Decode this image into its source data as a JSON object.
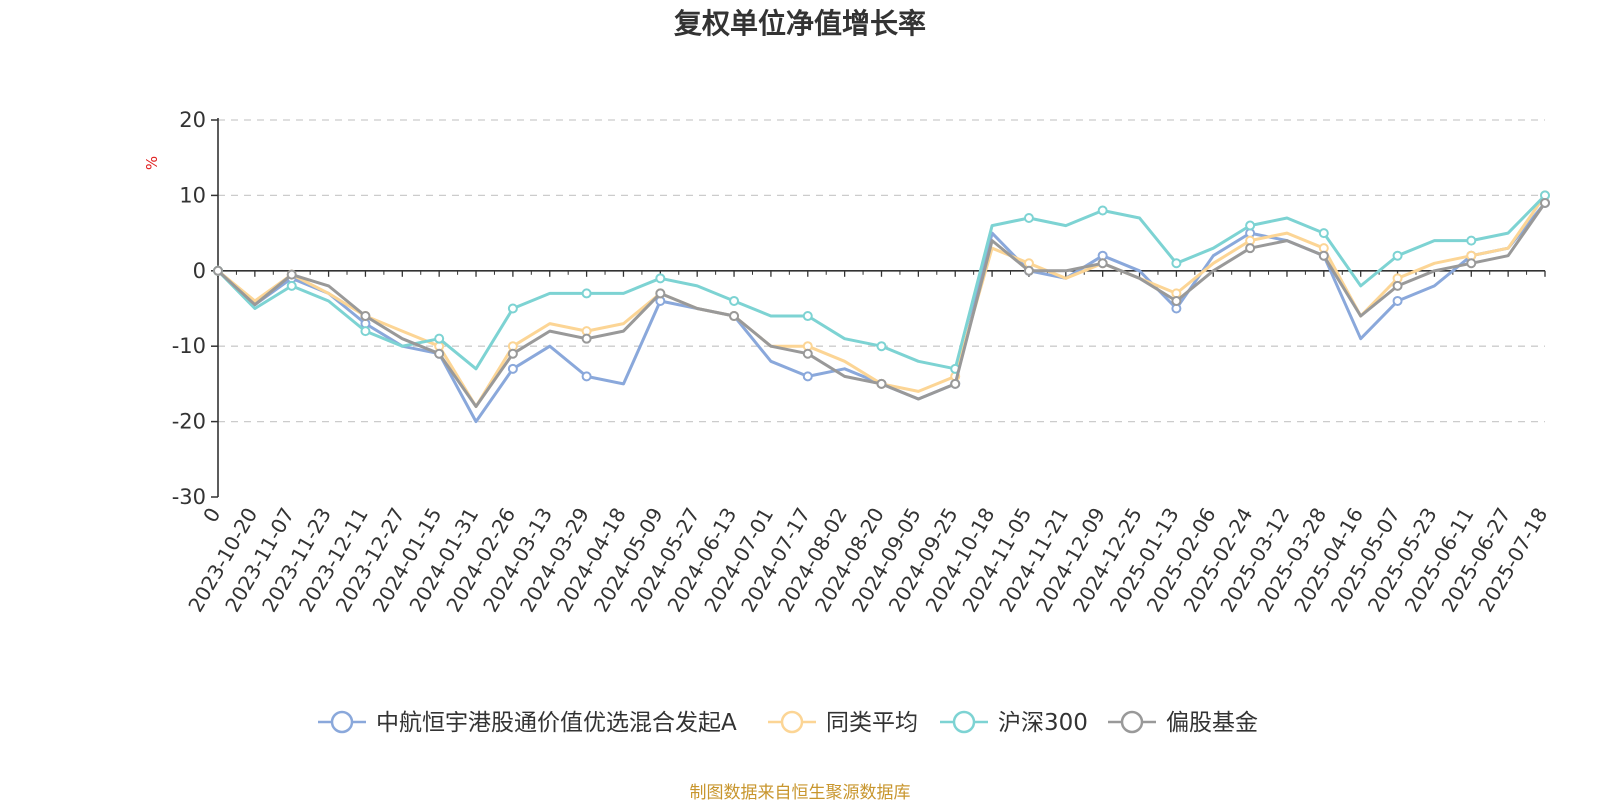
{
  "chart_data": {
    "type": "line",
    "title": "复权单位净值增长率",
    "ylabel": "%",
    "ylim": [
      -30,
      20
    ],
    "yticks": [
      20,
      10,
      0,
      -10,
      -20,
      -30
    ],
    "grid": "horizontal dashed",
    "legend_position": "bottom",
    "x_tick_labels": [
      "0",
      "2023-10-20",
      "2023-11-07",
      "2023-11-23",
      "2023-12-11",
      "2023-12-27",
      "2024-01-15",
      "2024-01-31",
      "2024-02-26",
      "2024-03-13",
      "2024-03-29",
      "2024-04-18",
      "2024-05-09",
      "2024-05-27",
      "2024-06-13",
      "2024-07-01",
      "2024-07-17",
      "2024-08-02",
      "2024-08-20",
      "2024-09-05",
      "2024-09-25",
      "2024-10-18",
      "2024-11-05",
      "2024-11-21",
      "2024-12-09",
      "2024-12-25",
      "2025-01-13",
      "2025-02-06",
      "2025-02-24",
      "2025-03-12",
      "2025-03-28",
      "2025-04-16",
      "2025-05-07",
      "2025-05-23",
      "2025-06-11",
      "2025-06-27",
      "2025-07-18"
    ],
    "series": [
      {
        "name": "中航恒宇港股通价值优选混合发起A",
        "color": "#8aa8db",
        "values": [
          0,
          -4.5,
          -1,
          -3,
          -7,
          -10,
          -11,
          -20,
          -13,
          -10,
          -14,
          -15,
          -4,
          -5,
          -6,
          -12,
          -14,
          -13,
          -15,
          -17,
          -15,
          5,
          0,
          -1,
          2,
          0,
          -5,
          2,
          5,
          4,
          2,
          -9,
          -4,
          -2,
          2,
          3,
          9
        ]
      },
      {
        "name": "同类平均",
        "color": "#fcd595",
        "values": [
          0,
          -4,
          -0.5,
          -3,
          -6,
          -8,
          -10,
          -18,
          -10,
          -7,
          -8,
          -7,
          -3,
          -5,
          -6,
          -10,
          -10,
          -12,
          -15,
          -16,
          -14,
          3,
          1,
          -1,
          1,
          -1,
          -3,
          1,
          4,
          5,
          3,
          -6,
          -1,
          1,
          2,
          3,
          10
        ]
      },
      {
        "name": "沪深300",
        "color": "#7dd3d3",
        "values": [
          0,
          -5,
          -2,
          -4,
          -8,
          -10,
          -9,
          -13,
          -5,
          -3,
          -3,
          -3,
          -1,
          -2,
          -4,
          -6,
          -6,
          -9,
          -10,
          -12,
          -13,
          6,
          7,
          6,
          8,
          7,
          1,
          3,
          6,
          7,
          5,
          -2,
          2,
          4,
          4,
          5,
          10
        ]
      },
      {
        "name": "偏股基金",
        "color": "#999999",
        "values": [
          0,
          -4.5,
          -0.5,
          -2,
          -6,
          -9,
          -11,
          -18,
          -11,
          -8,
          -9,
          -8,
          -3,
          -5,
          -6,
          -10,
          -11,
          -14,
          -15,
          -17,
          -15,
          4,
          0,
          0,
          1,
          -1,
          -4,
          0,
          3,
          4,
          2,
          -6,
          -2,
          0,
          1,
          2,
          9
        ]
      }
    ]
  },
  "legend_items": [
    {
      "label": "中航恒宇港股通价值优选混合发起A"
    },
    {
      "label": "同类平均"
    },
    {
      "label": "沪深300"
    },
    {
      "label": "偏股基金"
    }
  ],
  "source_text": "制图数据来自恒生聚源数据库"
}
